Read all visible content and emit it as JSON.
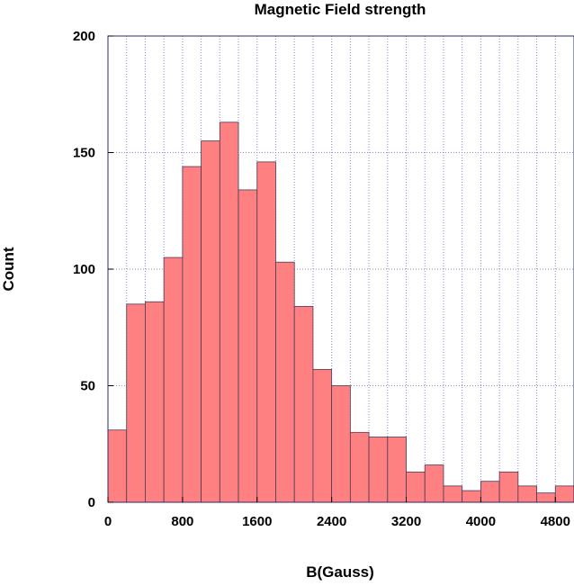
{
  "chart_data": {
    "type": "bar",
    "title": "Magnetic Field strength",
    "xlabel": "B(Gauss)",
    "ylabel": "Count",
    "bin_width": 200,
    "bin_starts": [
      0,
      200,
      400,
      600,
      800,
      1000,
      1200,
      1400,
      1600,
      1800,
      2000,
      2200,
      2400,
      2600,
      2800,
      3000,
      3200,
      3400,
      3600,
      3800,
      4000,
      4200,
      4400,
      4600,
      4800
    ],
    "values": [
      31,
      85,
      86,
      105,
      144,
      155,
      163,
      134,
      146,
      103,
      84,
      57,
      50,
      30,
      28,
      28,
      13,
      16,
      7,
      5,
      9,
      13,
      7,
      4,
      7
    ],
    "xlim": [
      0,
      5000
    ],
    "ylim": [
      0,
      200
    ],
    "xticks": [
      0,
      800,
      1600,
      2400,
      3200,
      4000,
      4800
    ],
    "yticks": [
      0,
      50,
      100,
      150,
      200
    ],
    "grid": true,
    "legend": "none",
    "colors": {
      "bar_fill": "#ff8080",
      "bar_edge": "#4a3a5a",
      "grid": "#8a8ad0",
      "frame": "#2a2a6a"
    }
  }
}
